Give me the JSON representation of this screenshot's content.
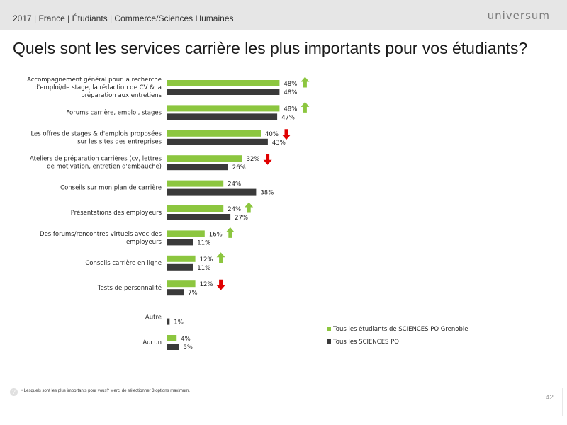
{
  "header": {
    "breadcrumb": "2017 | France | Étudiants | Commerce/Sciences Humaines",
    "logo": "universum"
  },
  "title": "Quels sont les services carrière les plus importants pour vos étudiants?",
  "colors": {
    "green": "#8cc63f",
    "dark": "#3a3a3a",
    "up": "#8cc63f",
    "down": "#e00000"
  },
  "chart_data": {
    "type": "bar",
    "orientation": "horizontal",
    "xlim": [
      0,
      100
    ],
    "categories": [
      "Accompagnement général pour la recherche d'emploi/de stage, la rédaction de CV & la préparation aux entretiens",
      "Forums carrière, emploi, stages",
      "Les offres de stages & d'emplois proposées sur les sites des entreprises",
      "Ateliers de préparation carrières (cv, lettres de motivation, entretien d'embauche)",
      "Conseils sur mon plan de carrière",
      "Présentations des employeurs",
      "Des forums/rencontres virtuels avec des employeurs",
      "Conseils carrière en ligne",
      "Tests de personnalité",
      "Autre",
      "Aucun"
    ],
    "category_lines": [
      [
        "Accompagnement général pour la recherche",
        "d'emploi/de stage, la rédaction de CV & la",
        "préparation aux entretiens"
      ],
      [
        "Forums carrière, emploi, stages"
      ],
      [
        "Les offres de stages & d'emplois proposées",
        "sur les sites des entreprises"
      ],
      [
        "Ateliers de préparation carrières (cv, lettres",
        "de motivation, entretien d'embauche)"
      ],
      [
        "Conseils sur mon plan de carrière"
      ],
      [
        "Présentations des employeurs"
      ],
      [
        "Des forums/rencontres virtuels avec des",
        "employeurs"
      ],
      [
        "Conseils carrière en ligne"
      ],
      [
        "Tests de personnalité"
      ],
      [
        "Autre"
      ],
      [
        "Aucun"
      ]
    ],
    "series": [
      {
        "name": "Tous les étudiants de SCIENCES PO Grenoble",
        "values": [
          48,
          48,
          40,
          32,
          24,
          24,
          16,
          12,
          12,
          null,
          4
        ],
        "color": "#8cc63f"
      },
      {
        "name": "Tous les SCIENCES PO",
        "values": [
          48,
          47,
          43,
          26,
          38,
          27,
          11,
          11,
          7,
          1,
          5
        ],
        "color": "#3a3a3a"
      }
    ],
    "trend": [
      "up",
      "up",
      "down",
      "down",
      null,
      "up",
      "up",
      "up",
      "down",
      null,
      null
    ]
  },
  "footer": {
    "note": "• Lesquels sont les plus importants pour vous? Merci de sélectionner 3 options maximum.",
    "page": "42"
  }
}
